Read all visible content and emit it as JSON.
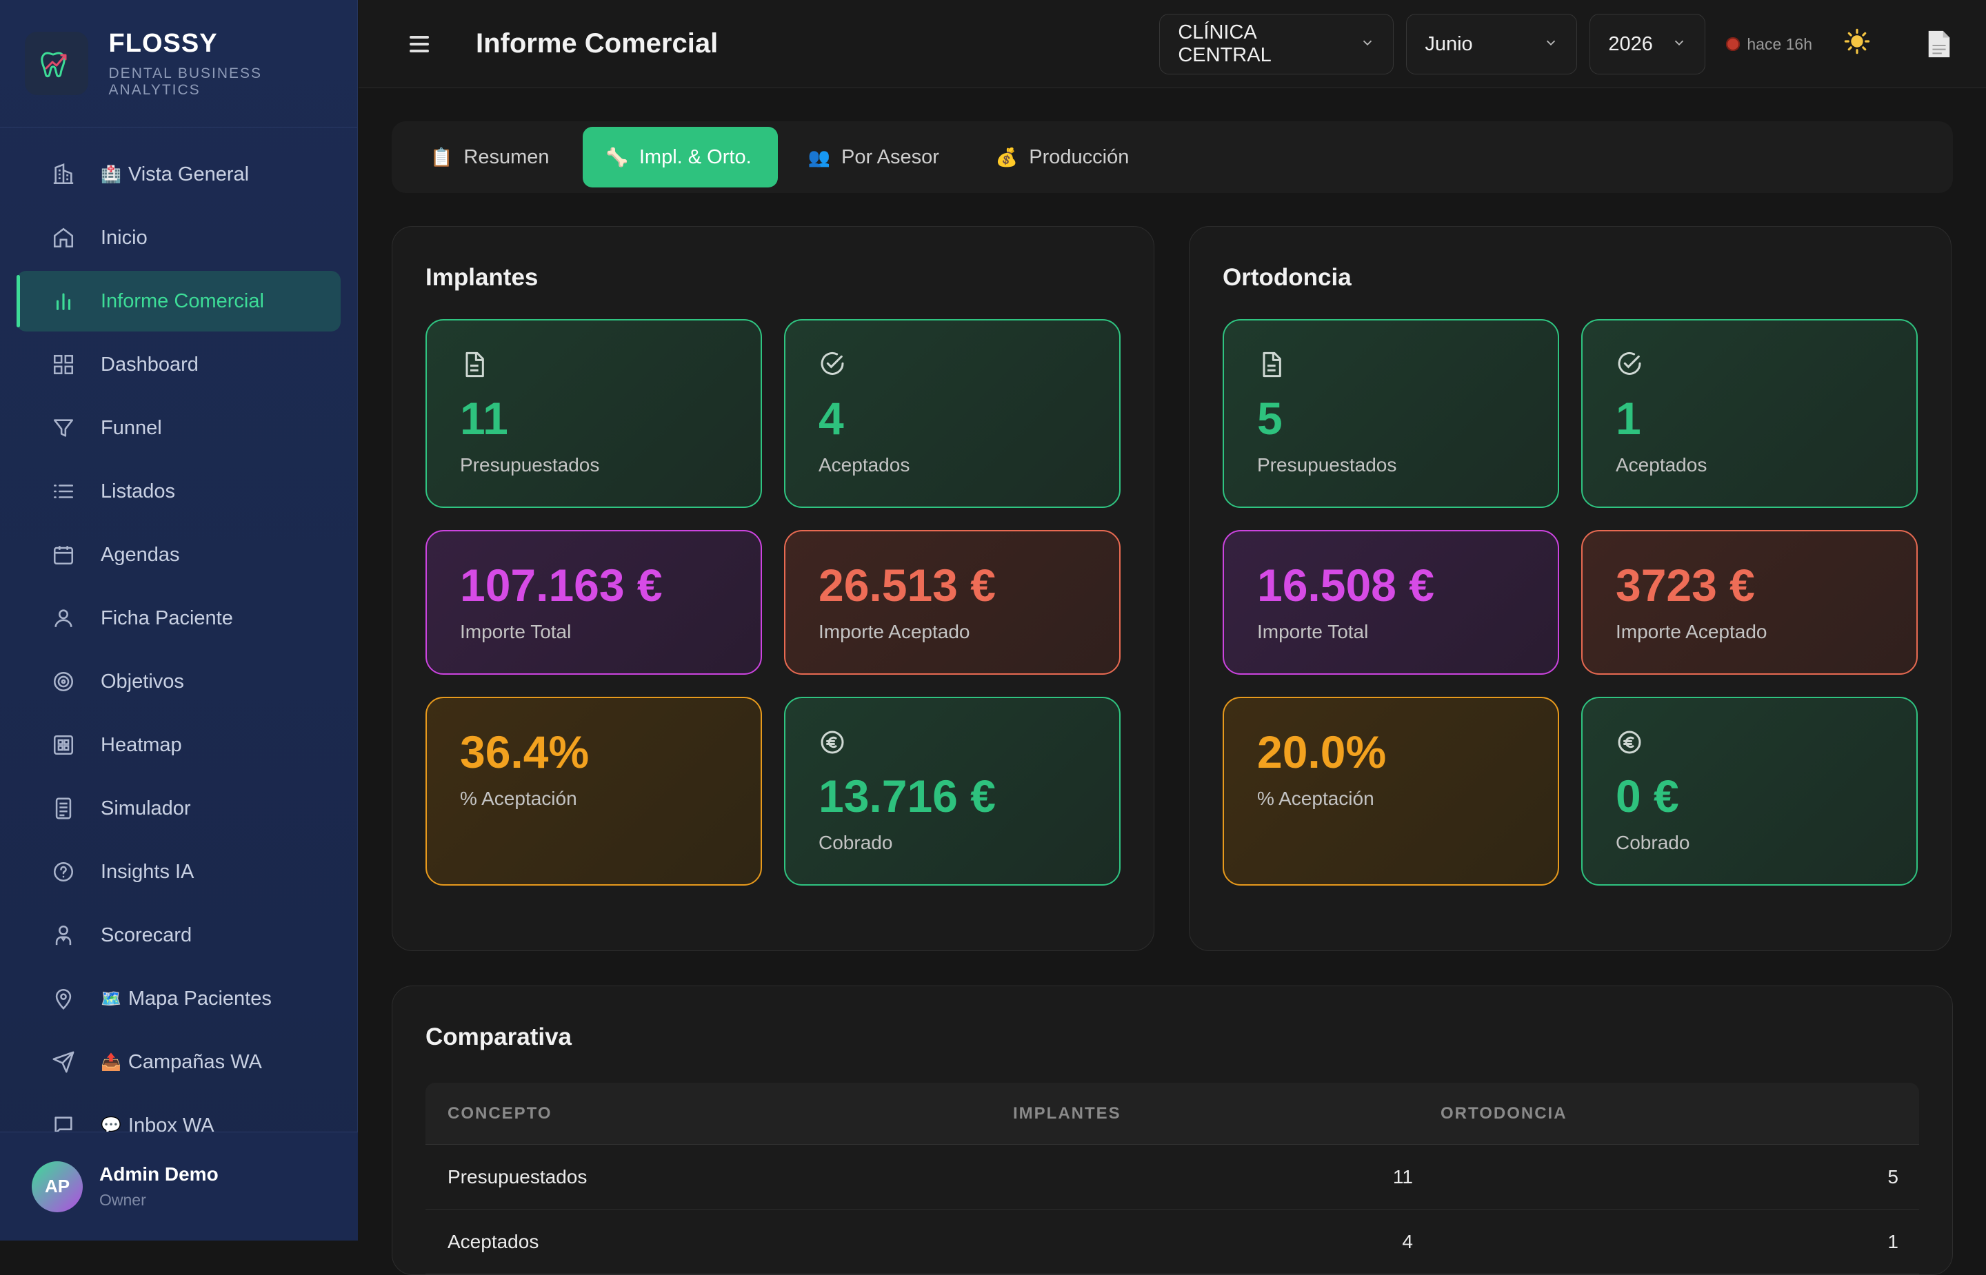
{
  "brand": {
    "name": "FLOSSY",
    "tagline": "DENTAL BUSINESS ANALYTICS"
  },
  "sidebar": {
    "items": [
      {
        "label": "Vista General",
        "emoji": "🏥",
        "icon": "building-icon"
      },
      {
        "label": "Inicio",
        "emoji": "",
        "icon": "home-icon"
      },
      {
        "label": "Informe Comercial",
        "emoji": "",
        "icon": "bar-chart-icon",
        "active": true
      },
      {
        "label": "Dashboard",
        "emoji": "",
        "icon": "grid-icon"
      },
      {
        "label": "Funnel",
        "emoji": "",
        "icon": "funnel-icon"
      },
      {
        "label": "Listados",
        "emoji": "",
        "icon": "list-icon"
      },
      {
        "label": "Agendas",
        "emoji": "",
        "icon": "calendar-icon"
      },
      {
        "label": "Ficha Paciente",
        "emoji": "",
        "icon": "user-icon"
      },
      {
        "label": "Objetivos",
        "emoji": "",
        "icon": "target-icon"
      },
      {
        "label": "Heatmap",
        "emoji": "",
        "icon": "heatmap-icon"
      },
      {
        "label": "Simulador",
        "emoji": "",
        "icon": "calculator-icon"
      },
      {
        "label": "Insights IA",
        "emoji": "",
        "icon": "help-circle-icon"
      },
      {
        "label": "Scorecard",
        "emoji": "",
        "icon": "person-badge-icon"
      },
      {
        "label": "Mapa Pacientes",
        "emoji": "🗺️",
        "icon": "map-pin-icon"
      },
      {
        "label": "Campañas WA",
        "emoji": "📤",
        "icon": "send-icon"
      },
      {
        "label": "Inbox WA",
        "emoji": "💬",
        "icon": "chat-icon"
      }
    ]
  },
  "user": {
    "initials": "AP",
    "name": "Admin Demo",
    "role": "Owner"
  },
  "header": {
    "title": "Informe Comercial",
    "clinic": "CLÍNICA CENTRAL",
    "month": "Junio",
    "year": "2026",
    "status": "hace 16h"
  },
  "tabs": [
    {
      "label": "Resumen",
      "emoji": "📋"
    },
    {
      "label": "Impl. & Orto.",
      "emoji": "🦴",
      "active": true
    },
    {
      "label": "Por Asesor",
      "emoji": "👥"
    },
    {
      "label": "Producción",
      "emoji": "💰"
    }
  ],
  "implantes": {
    "title": "Implantes",
    "presupuestados": {
      "value": "11",
      "label": "Presupuestados"
    },
    "aceptados": {
      "value": "4",
      "label": "Aceptados"
    },
    "importe_total": {
      "value": "107.163 €",
      "label": "Importe Total"
    },
    "importe_aceptado": {
      "value": "26.513 €",
      "label": "Importe Aceptado"
    },
    "aceptacion": {
      "value": "36.4%",
      "label": "% Aceptación"
    },
    "cobrado": {
      "value": "13.716 €",
      "label": "Cobrado"
    }
  },
  "ortodoncia": {
    "title": "Ortodoncia",
    "presupuestados": {
      "value": "5",
      "label": "Presupuestados"
    },
    "aceptados": {
      "value": "1",
      "label": "Aceptados"
    },
    "importe_total": {
      "value": "16.508 €",
      "label": "Importe Total"
    },
    "importe_aceptado": {
      "value": "3723 €",
      "label": "Importe Aceptado"
    },
    "aceptacion": {
      "value": "20.0%",
      "label": "% Aceptación"
    },
    "cobrado": {
      "value": "0 €",
      "label": "Cobrado"
    }
  },
  "comparativa": {
    "title": "Comparativa",
    "headers": [
      "CONCEPTO",
      "IMPLANTES",
      "ORTODONCIA"
    ],
    "rows": [
      [
        "Presupuestados",
        "11",
        "5"
      ],
      [
        "Aceptados",
        "4",
        "1"
      ]
    ]
  },
  "colors": {
    "accent": "#2ec27e",
    "purple": "#d64be6",
    "red": "#ee6d57",
    "orange": "#f3a21f",
    "sidebar": "#1c2b52"
  }
}
